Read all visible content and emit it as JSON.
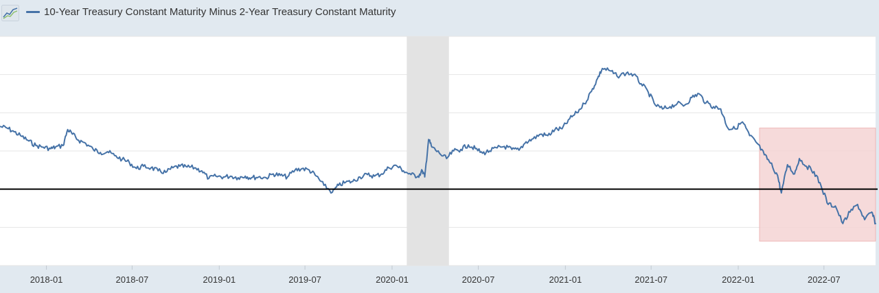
{
  "legend": {
    "series_name": "10-Year Treasury Constant Maturity Minus 2-Year Treasury Constant Maturity",
    "series_color": "#4572a7",
    "icon": "chart-line-icon"
  },
  "colors": {
    "plot_background": "#ffffff",
    "outer_background": "#e1e9f0",
    "recession_band": "#e3e3e3",
    "highlight_box": "#f4d3d3",
    "highlight_border": "#eeb7b7",
    "zero_line": "#000000",
    "gridline": "#e6e6e6"
  },
  "chart_data": {
    "type": "line",
    "title": "",
    "xlabel": "",
    "ylabel": "",
    "ylim": [
      -1.0,
      2.0
    ],
    "y_gridlines": [
      -1.0,
      -0.5,
      0.0,
      0.5,
      1.0,
      1.5,
      2.0
    ],
    "reference_line": {
      "y": 0.0,
      "label": ""
    },
    "x_range": [
      "2017-09-25",
      "2022-10-18"
    ],
    "x_tick_labels": [
      "2018-01",
      "2018-07",
      "2019-01",
      "2019-07",
      "2020-01",
      "2020-07",
      "2021-01",
      "2021-07",
      "2022-01",
      "2022-07"
    ],
    "recession_band": {
      "start": "2020-02-01",
      "end": "2020-04-30"
    },
    "highlight_region": {
      "start": "2022-02-15",
      "end": "2022-10-18",
      "ymin": -0.68,
      "ymax": 0.8
    },
    "series": [
      {
        "name": "10-Year Treasury Constant Maturity Minus 2-Year Treasury Constant Maturity",
        "points": [
          [
            "2017-09-25",
            0.82
          ],
          [
            "2017-10-10",
            0.8
          ],
          [
            "2017-10-25",
            0.75
          ],
          [
            "2017-11-10",
            0.69
          ],
          [
            "2017-11-25",
            0.63
          ],
          [
            "2017-12-10",
            0.57
          ],
          [
            "2017-12-25",
            0.55
          ],
          [
            "2018-01-10",
            0.53
          ],
          [
            "2018-01-20",
            0.55
          ],
          [
            "2018-02-05",
            0.57
          ],
          [
            "2018-02-15",
            0.78
          ],
          [
            "2018-02-25",
            0.72
          ],
          [
            "2018-03-10",
            0.64
          ],
          [
            "2018-03-25",
            0.6
          ],
          [
            "2018-04-10",
            0.52
          ],
          [
            "2018-04-25",
            0.48
          ],
          [
            "2018-05-10",
            0.49
          ],
          [
            "2018-05-25",
            0.44
          ],
          [
            "2018-06-10",
            0.39
          ],
          [
            "2018-06-25",
            0.35
          ],
          [
            "2018-07-10",
            0.27
          ],
          [
            "2018-07-25",
            0.3
          ],
          [
            "2018-08-10",
            0.28
          ],
          [
            "2018-08-25",
            0.24
          ],
          [
            "2018-09-10",
            0.22
          ],
          [
            "2018-09-25",
            0.28
          ],
          [
            "2018-10-10",
            0.3
          ],
          [
            "2018-10-25",
            0.29
          ],
          [
            "2018-11-10",
            0.28
          ],
          [
            "2018-11-25",
            0.24
          ],
          [
            "2018-12-10",
            0.14
          ],
          [
            "2018-12-25",
            0.17
          ],
          [
            "2019-01-10",
            0.16
          ],
          [
            "2019-01-25",
            0.17
          ],
          [
            "2019-02-10",
            0.15
          ],
          [
            "2019-02-25",
            0.17
          ],
          [
            "2019-03-10",
            0.15
          ],
          [
            "2019-03-25",
            0.16
          ],
          [
            "2019-04-10",
            0.15
          ],
          [
            "2019-04-25",
            0.2
          ],
          [
            "2019-05-10",
            0.18
          ],
          [
            "2019-05-25",
            0.16
          ],
          [
            "2019-06-10",
            0.25
          ],
          [
            "2019-06-25",
            0.27
          ],
          [
            "2019-07-10",
            0.25
          ],
          [
            "2019-07-25",
            0.17
          ],
          [
            "2019-08-10",
            0.05
          ],
          [
            "2019-08-28",
            -0.04
          ],
          [
            "2019-09-10",
            0.05
          ],
          [
            "2019-09-25",
            0.09
          ],
          [
            "2019-10-10",
            0.1
          ],
          [
            "2019-10-25",
            0.16
          ],
          [
            "2019-11-10",
            0.19
          ],
          [
            "2019-11-25",
            0.17
          ],
          [
            "2019-12-10",
            0.2
          ],
          [
            "2019-12-25",
            0.28
          ],
          [
            "2020-01-10",
            0.31
          ],
          [
            "2020-01-25",
            0.24
          ],
          [
            "2020-02-10",
            0.19
          ],
          [
            "2020-02-25",
            0.17
          ],
          [
            "2020-03-05",
            0.24
          ],
          [
            "2020-03-10",
            0.16
          ],
          [
            "2020-03-18",
            0.65
          ],
          [
            "2020-03-25",
            0.55
          ],
          [
            "2020-04-10",
            0.47
          ],
          [
            "2020-04-25",
            0.4
          ],
          [
            "2020-05-10",
            0.5
          ],
          [
            "2020-05-25",
            0.52
          ],
          [
            "2020-06-10",
            0.58
          ],
          [
            "2020-06-25",
            0.53
          ],
          [
            "2020-07-10",
            0.47
          ],
          [
            "2020-07-25",
            0.5
          ],
          [
            "2020-08-10",
            0.54
          ],
          [
            "2020-08-25",
            0.56
          ],
          [
            "2020-09-10",
            0.52
          ],
          [
            "2020-09-25",
            0.51
          ],
          [
            "2020-10-10",
            0.62
          ],
          [
            "2020-10-25",
            0.66
          ],
          [
            "2020-11-10",
            0.72
          ],
          [
            "2020-11-25",
            0.7
          ],
          [
            "2020-12-10",
            0.78
          ],
          [
            "2020-12-25",
            0.79
          ],
          [
            "2021-01-10",
            0.92
          ],
          [
            "2021-01-25",
            1.0
          ],
          [
            "2021-02-10",
            1.12
          ],
          [
            "2021-02-25",
            1.28
          ],
          [
            "2021-03-10",
            1.45
          ],
          [
            "2021-03-20",
            1.58
          ],
          [
            "2021-04-05",
            1.55
          ],
          [
            "2021-04-20",
            1.48
          ],
          [
            "2021-05-10",
            1.52
          ],
          [
            "2021-05-25",
            1.5
          ],
          [
            "2021-06-10",
            1.38
          ],
          [
            "2021-06-25",
            1.27
          ],
          [
            "2021-07-10",
            1.1
          ],
          [
            "2021-07-25",
            1.05
          ],
          [
            "2021-08-10",
            1.08
          ],
          [
            "2021-08-25",
            1.12
          ],
          [
            "2021-09-10",
            1.1
          ],
          [
            "2021-09-25",
            1.2
          ],
          [
            "2021-10-10",
            1.25
          ],
          [
            "2021-10-25",
            1.13
          ],
          [
            "2021-11-10",
            1.08
          ],
          [
            "2021-11-25",
            1.05
          ],
          [
            "2021-12-10",
            0.8
          ],
          [
            "2021-12-25",
            0.79
          ],
          [
            "2022-01-10",
            0.88
          ],
          [
            "2022-01-25",
            0.7
          ],
          [
            "2022-02-10",
            0.6
          ],
          [
            "2022-02-25",
            0.45
          ],
          [
            "2022-03-10",
            0.34
          ],
          [
            "2022-03-25",
            0.18
          ],
          [
            "2022-04-02",
            -0.05
          ],
          [
            "2022-04-15",
            0.32
          ],
          [
            "2022-04-30",
            0.2
          ],
          [
            "2022-05-10",
            0.4
          ],
          [
            "2022-05-25",
            0.3
          ],
          [
            "2022-06-10",
            0.23
          ],
          [
            "2022-06-25",
            0.04
          ],
          [
            "2022-07-10",
            -0.2
          ],
          [
            "2022-07-25",
            -0.22
          ],
          [
            "2022-08-10",
            -0.45
          ],
          [
            "2022-08-25",
            -0.3
          ],
          [
            "2022-09-10",
            -0.2
          ],
          [
            "2022-09-25",
            -0.4
          ],
          [
            "2022-10-10",
            -0.3
          ],
          [
            "2022-10-18",
            -0.45
          ]
        ]
      }
    ]
  }
}
